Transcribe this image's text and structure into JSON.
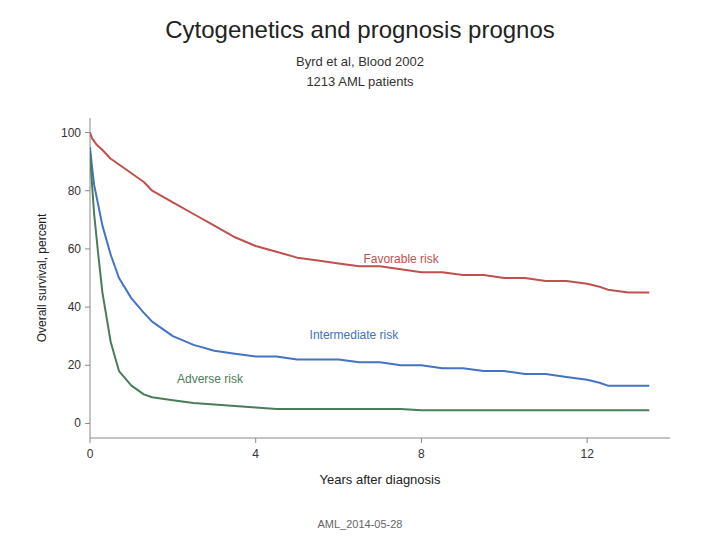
{
  "chart_data": {
    "type": "line",
    "title": "Cytogenetics and prognosis prognos",
    "subtitle": [
      "Byrd et al, Blood 2002",
      "1213 AML patients"
    ],
    "xlabel": "Years after diagnosis",
    "ylabel": "Overall survival, percent",
    "footer": "AML_2014-05-28",
    "xlim": [
      0,
      14
    ],
    "ylim": [
      -5,
      105
    ],
    "xticks": [
      0,
      4,
      8,
      12
    ],
    "yticks": [
      0,
      20,
      40,
      60,
      80,
      100
    ],
    "grid": false,
    "series": [
      {
        "color": "#c0504d",
        "x": [
          0,
          0.05,
          0.15,
          0.3,
          0.5,
          0.7,
          1.0,
          1.3,
          1.5,
          2.0,
          2.5,
          3.0,
          3.5,
          4.0,
          4.5,
          5.0,
          5.5,
          6.0,
          6.5,
          7.0,
          7.5,
          8.0,
          8.5,
          9.0,
          9.5,
          10.0,
          10.5,
          11.0,
          11.5,
          12.0,
          12.3,
          12.5,
          13.0,
          13.5
        ],
        "values": [
          100,
          98,
          96,
          94,
          91,
          89,
          86,
          83,
          80,
          76,
          72,
          68,
          64,
          61,
          59,
          57,
          56,
          55,
          54,
          54,
          53,
          52,
          52,
          51,
          51,
          50,
          50,
          49,
          49,
          48,
          47,
          46,
          45,
          45
        ]
      },
      {
        "color": "#4472c4",
        "x": [
          0,
          0.05,
          0.1,
          0.2,
          0.3,
          0.5,
          0.7,
          1.0,
          1.3,
          1.5,
          2.0,
          2.5,
          3.0,
          3.5,
          4.0,
          4.5,
          5.0,
          5.5,
          6.0,
          6.5,
          7.0,
          7.5,
          8.0,
          8.5,
          9.0,
          9.5,
          10.0,
          10.5,
          11.0,
          11.5,
          12.0,
          12.3,
          12.5,
          13.0,
          13.5
        ],
        "values": [
          95,
          88,
          82,
          75,
          68,
          58,
          50,
          43,
          38,
          35,
          30,
          27,
          25,
          24,
          23,
          23,
          22,
          22,
          22,
          21,
          21,
          20,
          20,
          19,
          19,
          18,
          18,
          17,
          17,
          16,
          15,
          14,
          13,
          13,
          13
        ]
      },
      {
        "color": "#4a7c59",
        "x": [
          0,
          0.05,
          0.1,
          0.2,
          0.3,
          0.5,
          0.7,
          1.0,
          1.3,
          1.5,
          2.0,
          2.5,
          3.0,
          3.5,
          4.0,
          4.5,
          5.0,
          5.5,
          6.0,
          6.5,
          7.0,
          7.5,
          8.0,
          8.5,
          9.0,
          9.5,
          10.0,
          10.5,
          11.0,
          11.5,
          12.0,
          12.5,
          13.0,
          13.5
        ],
        "values": [
          93,
          82,
          72,
          58,
          45,
          28,
          18,
          13,
          10,
          9,
          8,
          7,
          6.5,
          6,
          5.5,
          5,
          5,
          5,
          5,
          5,
          5,
          5,
          4.5,
          4.5,
          4.5,
          4.5,
          4.5,
          4.5,
          4.5,
          4.5,
          4.5,
          4.5,
          4.5,
          4.5
        ]
      }
    ],
    "annotations": [
      {
        "text": "Favorable risk",
        "x": 6.6,
        "y": 55,
        "color": "#c0504d"
      },
      {
        "text": "Intermediate risk",
        "x": 5.3,
        "y": 29,
        "color": "#4472c4"
      },
      {
        "text": "Adverse risk",
        "x": 2.1,
        "y": 14,
        "color": "#4a7c59"
      }
    ]
  }
}
